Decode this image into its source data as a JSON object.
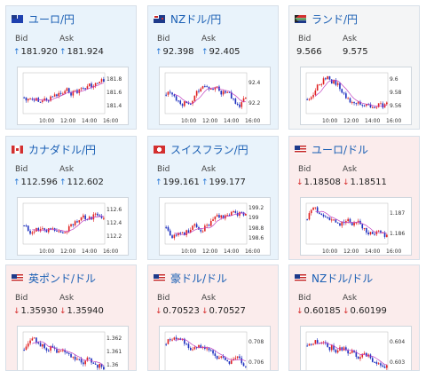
{
  "labels": {
    "bid": "Bid",
    "ask": "Ask"
  },
  "cards": [
    {
      "id": "eurjpy",
      "name": "ユーロ/円",
      "theme": "up",
      "flag": "eu",
      "bid": "181.920",
      "ask": "181.924",
      "bid_dir": "up",
      "ask_dir": "up",
      "y_ticks": [
        "181.8",
        "181.6",
        "181.4"
      ],
      "x_ticks": [
        "10:00",
        "12:00",
        "14:00",
        "16:00"
      ],
      "trend": "rise"
    },
    {
      "id": "nzdjpy",
      "name": "NZドル/円",
      "theme": "up",
      "flag": "nz",
      "bid": "92.398",
      "ask": "92.405",
      "bid_dir": "up",
      "ask_dir": "up",
      "y_ticks": [
        "92.4",
        "92.2"
      ],
      "x_ticks": [
        "10:00",
        "12:00",
        "14:00",
        "16:00"
      ],
      "trend": "mixed"
    },
    {
      "id": "zarjpy",
      "name": "ランド/円",
      "theme": "flat",
      "flag": "za",
      "bid": "9.566",
      "ask": "9.575",
      "bid_dir": "none",
      "ask_dir": "none",
      "y_ticks": [
        "9.6",
        "9.58",
        "9.56"
      ],
      "x_ticks": [
        "10:00",
        "12:00",
        "14:00",
        "16:00"
      ],
      "trend": "peak"
    },
    {
      "id": "cadjpy",
      "name": "カナダドル/円",
      "theme": "up",
      "flag": "ca",
      "bid": "112.596",
      "ask": "112.602",
      "bid_dir": "up",
      "ask_dir": "up",
      "y_ticks": [
        "112.6",
        "112.4",
        "112.2"
      ],
      "x_ticks": [
        "10:00",
        "12:00",
        "14:00",
        "16:00"
      ],
      "trend": "rise"
    },
    {
      "id": "chfjpy",
      "name": "スイスフラン/円",
      "theme": "up",
      "flag": "ch",
      "bid": "199.161",
      "ask": "199.177",
      "bid_dir": "up",
      "ask_dir": "up",
      "y_ticks": [
        "199.2",
        "199",
        "198.8",
        "198.6"
      ],
      "x_ticks": [
        "10:00",
        "12:00",
        "14:00",
        "16:00"
      ],
      "trend": "rise"
    },
    {
      "id": "eurusd",
      "name": "ユーロ/ドル",
      "theme": "down",
      "flag": "us",
      "bid": "1.18508",
      "ask": "1.18511",
      "bid_dir": "down",
      "ask_dir": "down",
      "y_ticks": [
        "1.187",
        "1.186"
      ],
      "x_ticks": [
        "10:00",
        "12:00",
        "14:00",
        "16:00"
      ],
      "trend": "fall"
    },
    {
      "id": "gbpusd",
      "name": "英ポンド/ドル",
      "theme": "down",
      "flag": "us",
      "bid": "1.35930",
      "ask": "1.35940",
      "bid_dir": "down",
      "ask_dir": "down",
      "y_ticks": [
        "1.362",
        "1.361",
        "1.36"
      ],
      "x_ticks": [],
      "trend": "fall"
    },
    {
      "id": "audusd",
      "name": "豪ドル/ドル",
      "theme": "down",
      "flag": "us",
      "bid": "0.70523",
      "ask": "0.70527",
      "bid_dir": "down",
      "ask_dir": "down",
      "y_ticks": [
        "0.708",
        "0.706"
      ],
      "x_ticks": [],
      "trend": "fall"
    },
    {
      "id": "nzdusd",
      "name": "NZドル/ドル",
      "theme": "down",
      "flag": "us",
      "bid": "0.60185",
      "ask": "0.60199",
      "bid_dir": "down",
      "ask_dir": "down",
      "y_ticks": [
        "0.604",
        "0.603"
      ],
      "x_ticks": [],
      "trend": "fall"
    }
  ]
}
